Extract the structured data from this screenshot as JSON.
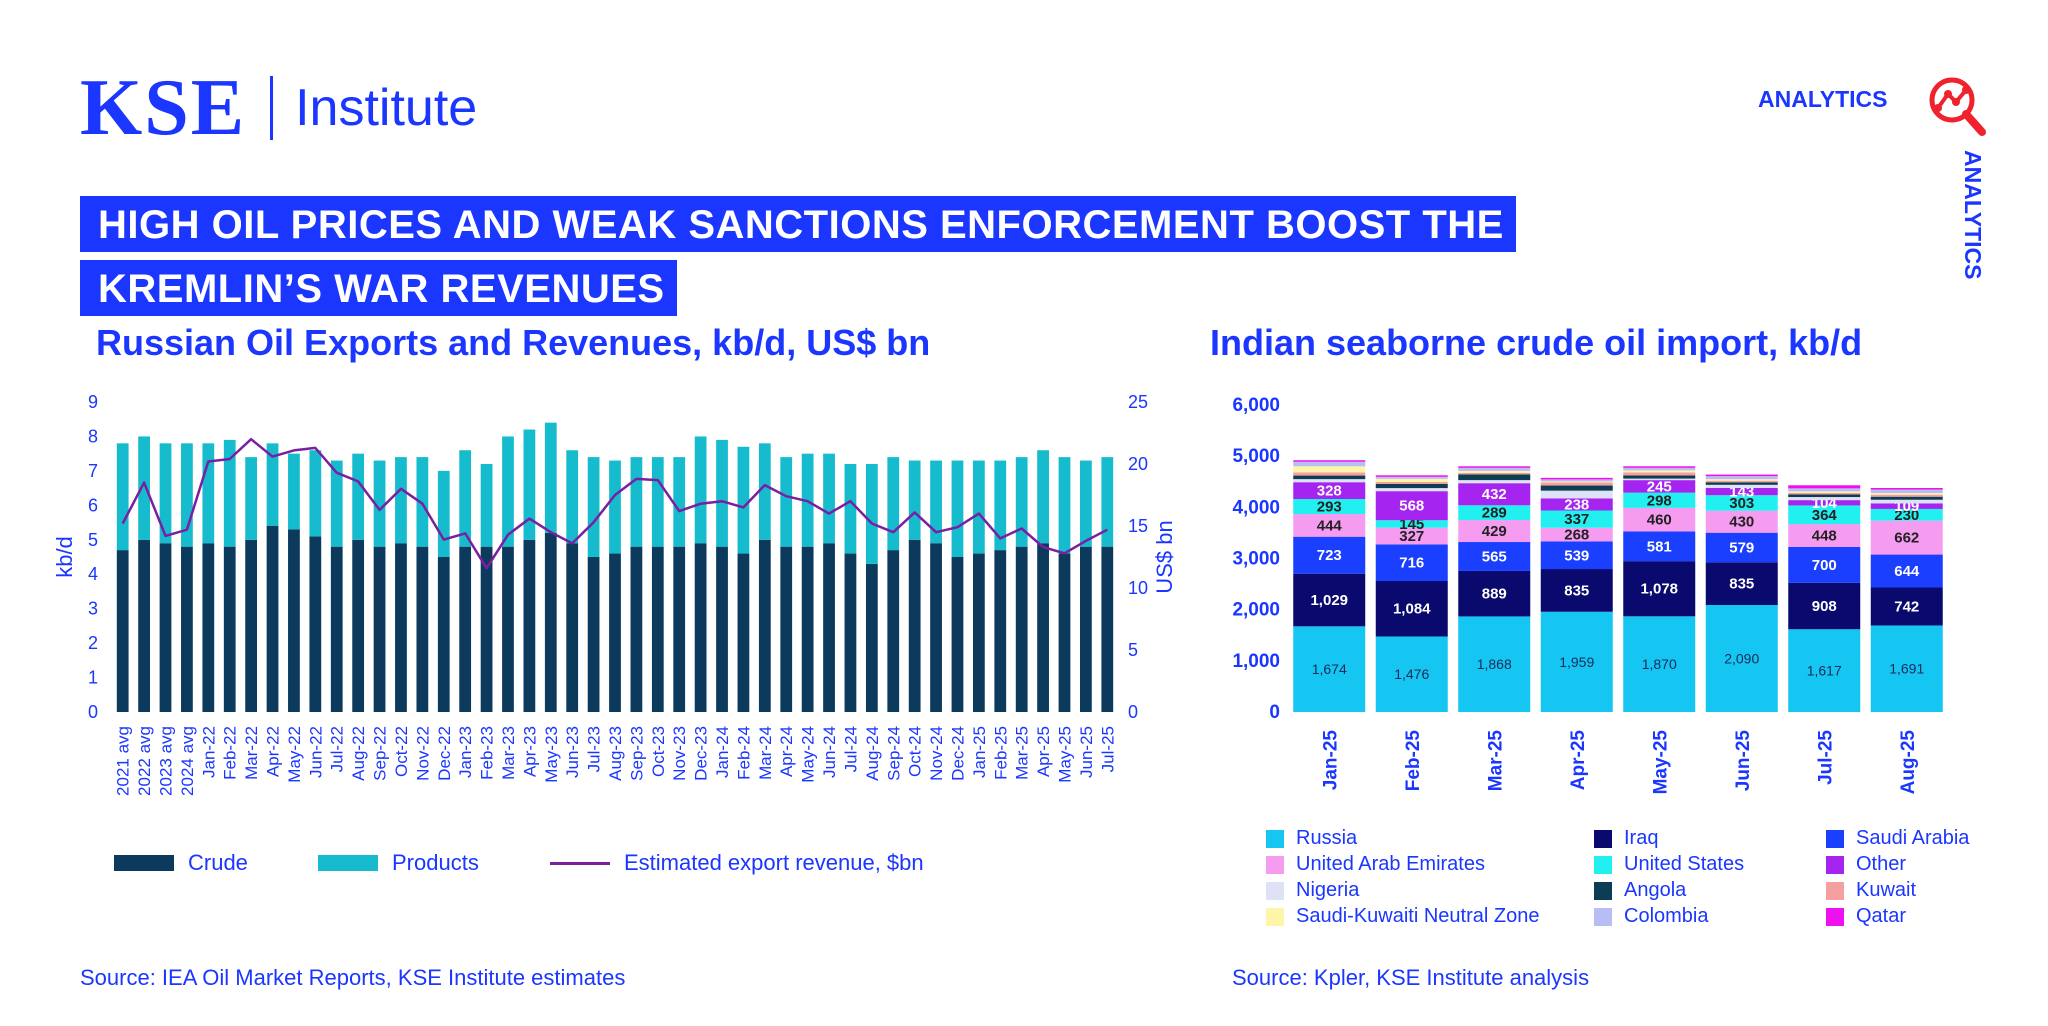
{
  "header": {
    "logo_main": "KSE",
    "logo_sub": "Institute",
    "analytics_label": "ANALYTICS",
    "analytics_side_label": "ANALYTICS",
    "headline_line1": "HIGH OIL PRICES AND WEAK SANCTIONS ENFORCEMENT BOOST THE",
    "headline_line2": "KREMLIN’S WAR REVENUES"
  },
  "colors": {
    "brand_blue": "#1a36ff",
    "crude": "#0b3a5c",
    "products": "#16bccd",
    "revenue_line": "#7a1fa2"
  },
  "icons": {
    "analytics": "analytics-magnifier-icon"
  },
  "left_source": "Source: IEA Oil Market Reports, KSE Institute estimates",
  "right_source": "Source: Kpler, KSE Institute analysis",
  "chart_data": [
    {
      "type": "bar",
      "stacked": true,
      "title": "Russian Oil Exports and Revenues, kb/d, US$ bn",
      "ylabel": "kb/d",
      "y2label": "US$ bn",
      "ylim": [
        0,
        9
      ],
      "y2lim": [
        0,
        25
      ],
      "yticks": [
        0,
        1,
        2,
        3,
        4,
        5,
        6,
        7,
        8,
        9
      ],
      "y2ticks": [
        0,
        5,
        10,
        15,
        20,
        25
      ],
      "grid": false,
      "legend_position": "bottom",
      "categories": [
        "2021 avg",
        "2022 avg",
        "2023 avg",
        "2024 avg",
        "Jan-22",
        "Feb-22",
        "Mar-22",
        "Apr-22",
        "May-22",
        "Jun-22",
        "Jul-22",
        "Aug-22",
        "Sep-22",
        "Oct-22",
        "Nov-22",
        "Dec-22",
        "Jan-23",
        "Feb-23",
        "Mar-23",
        "Apr-23",
        "May-23",
        "Jun-23",
        "Jul-23",
        "Aug-23",
        "Sep-23",
        "Oct-23",
        "Nov-23",
        "Dec-23",
        "Jan-24",
        "Feb-24",
        "Mar-24",
        "Apr-24",
        "May-24",
        "Jun-24",
        "Jul-24",
        "Aug-24",
        "Sep-24",
        "Oct-24",
        "Nov-24",
        "Dec-24",
        "Jan-25",
        "Feb-25",
        "Mar-25",
        "Apr-25",
        "May-25",
        "Jun-25",
        "Jul-25"
      ],
      "series": [
        {
          "name": "Crude",
          "kind": "bar",
          "values": [
            4.7,
            5.0,
            4.9,
            4.8,
            4.9,
            4.8,
            5.0,
            5.4,
            5.3,
            5.1,
            4.8,
            5.0,
            4.8,
            4.9,
            4.8,
            4.5,
            4.8,
            4.8,
            4.8,
            5.0,
            5.2,
            4.9,
            4.5,
            4.6,
            4.8,
            4.8,
            4.8,
            4.9,
            4.8,
            4.6,
            5.0,
            4.8,
            4.8,
            4.9,
            4.6,
            4.3,
            4.7,
            5.0,
            4.9,
            4.5,
            4.6,
            4.7,
            4.8,
            4.9,
            4.6,
            4.8,
            4.8
          ]
        },
        {
          "name": "Products",
          "kind": "bar",
          "values": [
            3.1,
            3.0,
            2.9,
            3.0,
            2.9,
            3.1,
            2.4,
            2.4,
            2.2,
            2.5,
            2.5,
            2.5,
            2.5,
            2.5,
            2.6,
            2.5,
            2.8,
            2.4,
            3.2,
            3.2,
            3.2,
            2.7,
            2.9,
            2.7,
            2.6,
            2.6,
            2.6,
            3.1,
            3.1,
            3.1,
            2.8,
            2.6,
            2.7,
            2.6,
            2.6,
            2.9,
            2.7,
            2.3,
            2.4,
            2.8,
            2.7,
            2.6,
            2.6,
            2.7,
            2.8,
            2.5,
            2.6
          ]
        },
        {
          "name": "Estimated export revenue, $bn",
          "kind": "line",
          "axis": "right",
          "values": [
            15.2,
            18.5,
            14.2,
            14.7,
            20.2,
            20.4,
            22.0,
            20.6,
            21.1,
            21.3,
            19.3,
            18.6,
            16.3,
            18.0,
            16.8,
            13.9,
            14.4,
            11.6,
            14.3,
            15.6,
            14.5,
            13.6,
            15.3,
            17.5,
            18.8,
            18.7,
            16.2,
            16.8,
            17.0,
            16.5,
            18.3,
            17.4,
            17.0,
            16.0,
            17.0,
            15.2,
            14.5,
            16.1,
            14.5,
            14.9,
            16.0,
            14.0,
            14.8,
            13.3,
            12.8,
            13.8,
            14.7
          ]
        }
      ]
    },
    {
      "type": "bar",
      "stacked": true,
      "title": "Indian seaborne crude oil import, kb/d",
      "ylim": [
        0,
        6000
      ],
      "yticks": [
        "0",
        "1,000",
        "2,000",
        "3,000",
        "4,000",
        "5,000",
        "6,000"
      ],
      "grid": false,
      "legend_position": "bottom",
      "categories": [
        "Jan-25",
        "Feb-25",
        "Mar-25",
        "Apr-25",
        "May-25",
        "Jun-25",
        "Jul-25",
        "Aug-25"
      ],
      "series": [
        {
          "name": "Russia",
          "color": "#16c6f2",
          "values": [
            1674,
            1476,
            1868,
            1959,
            1870,
            2090,
            1617,
            1691
          ],
          "labels": [
            "1,674",
            "1,476",
            "1,868",
            "1,959",
            "1,870",
            "2,090",
            "1,617",
            "1,691"
          ]
        },
        {
          "name": "Iraq",
          "color": "#0a0a6e",
          "values": [
            1029,
            1084,
            889,
            835,
            1078,
            835,
            908,
            742
          ],
          "labels": [
            "1,029",
            "1,084",
            "889",
            "835",
            "1,078",
            "835",
            "908",
            "742"
          ]
        },
        {
          "name": "Saudi Arabia",
          "color": "#1a3fff",
          "values": [
            723,
            716,
            565,
            539,
            581,
            579,
            700,
            644
          ],
          "labels": [
            "723",
            "716",
            "565",
            "539",
            "581",
            "579",
            "700",
            "644"
          ]
        },
        {
          "name": "United Arab Emirates",
          "color": "#f59bf0",
          "values": [
            444,
            327,
            429,
            268,
            460,
            430,
            448,
            662
          ],
          "labels": [
            "444",
            "327",
            "429",
            "268",
            "460",
            "430",
            "448",
            "662"
          ]
        },
        {
          "name": "United States",
          "color": "#22f0f0",
          "values": [
            293,
            145,
            289,
            337,
            298,
            303,
            364,
            230
          ],
          "labels": [
            "293",
            "145",
            "289",
            "337",
            "298",
            "303",
            "364",
            "230"
          ]
        },
        {
          "name": "Other",
          "color": "#a624f0",
          "values": [
            328,
            568,
            432,
            238,
            245,
            143,
            104,
            109
          ],
          "labels": [
            "328",
            "568",
            "432",
            "238",
            "245",
            "143",
            "104",
            "109"
          ]
        },
        {
          "name": "Nigeria",
          "color": "#dde2f7",
          "values": [
            60,
            60,
            60,
            150,
            30,
            60,
            60,
            70
          ]
        },
        {
          "name": "Angola",
          "color": "#0d3d55",
          "values": [
            70,
            80,
            110,
            100,
            60,
            50,
            50,
            60
          ]
        },
        {
          "name": "Kuwait",
          "color": "#f4a0a0",
          "values": [
            60,
            40,
            30,
            60,
            60,
            30,
            30,
            40
          ]
        },
        {
          "name": "Saudi-Kuwaiti Neutral Zone",
          "color": "#fff5a8",
          "values": [
            120,
            60,
            40,
            20,
            40,
            30,
            30,
            30
          ]
        },
        {
          "name": "Colombia",
          "color": "#b9bdf5",
          "values": [
            90,
            40,
            60,
            40,
            50,
            60,
            60,
            70
          ]
        },
        {
          "name": "Qatar",
          "color": "#ee10ee",
          "values": [
            30,
            30,
            30,
            30,
            30,
            30,
            60,
            30
          ]
        }
      ]
    }
  ]
}
